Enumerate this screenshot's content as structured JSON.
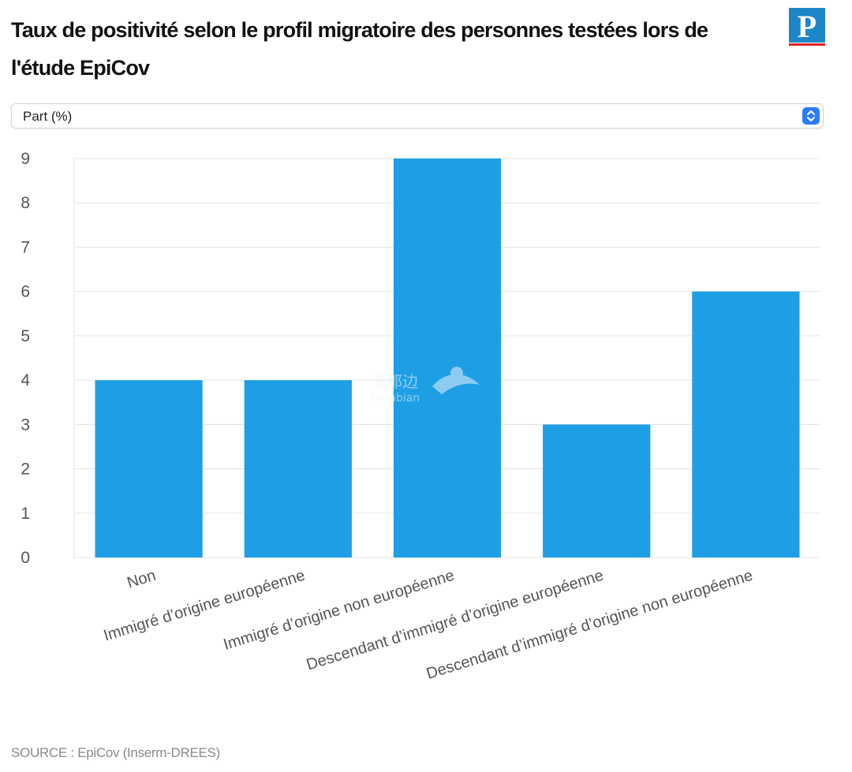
{
  "header": {
    "title": "Taux de positivité selon le profil migratoire des personnes testées lors de l'étude EpiCov"
  },
  "logo": {
    "text": "P",
    "color": "#1d86c9",
    "underline_color": "#e02424"
  },
  "selector": {
    "value": "Part (%)",
    "icon": "chevron-updown-icon"
  },
  "chart_data": {
    "type": "bar",
    "categories": [
      "Non",
      "Immigré d’origine européenne",
      "Immigré d’origine non européenne",
      "Descendant d’immigré d’origine européenne",
      "Descendant d’immigré d’origine non européenne"
    ],
    "values": [
      4,
      4,
      9,
      3,
      6
    ],
    "title": "Taux de positivité selon le profil migratoire des personnes testées lors de l'étude EpiCov",
    "xlabel": "",
    "ylabel": "",
    "ylim": [
      0,
      9
    ],
    "yticks": [
      "0",
      "1",
      "2",
      "3",
      "4",
      "5",
      "6",
      "7",
      "8",
      "9"
    ],
    "grid": true,
    "color": "#1e9fe5"
  },
  "watermark": {
    "text": "海那边",
    "subtext": "Hinabian"
  },
  "footer": {
    "source": "SOURCE : EpiCov (Inserm-DREES)"
  }
}
